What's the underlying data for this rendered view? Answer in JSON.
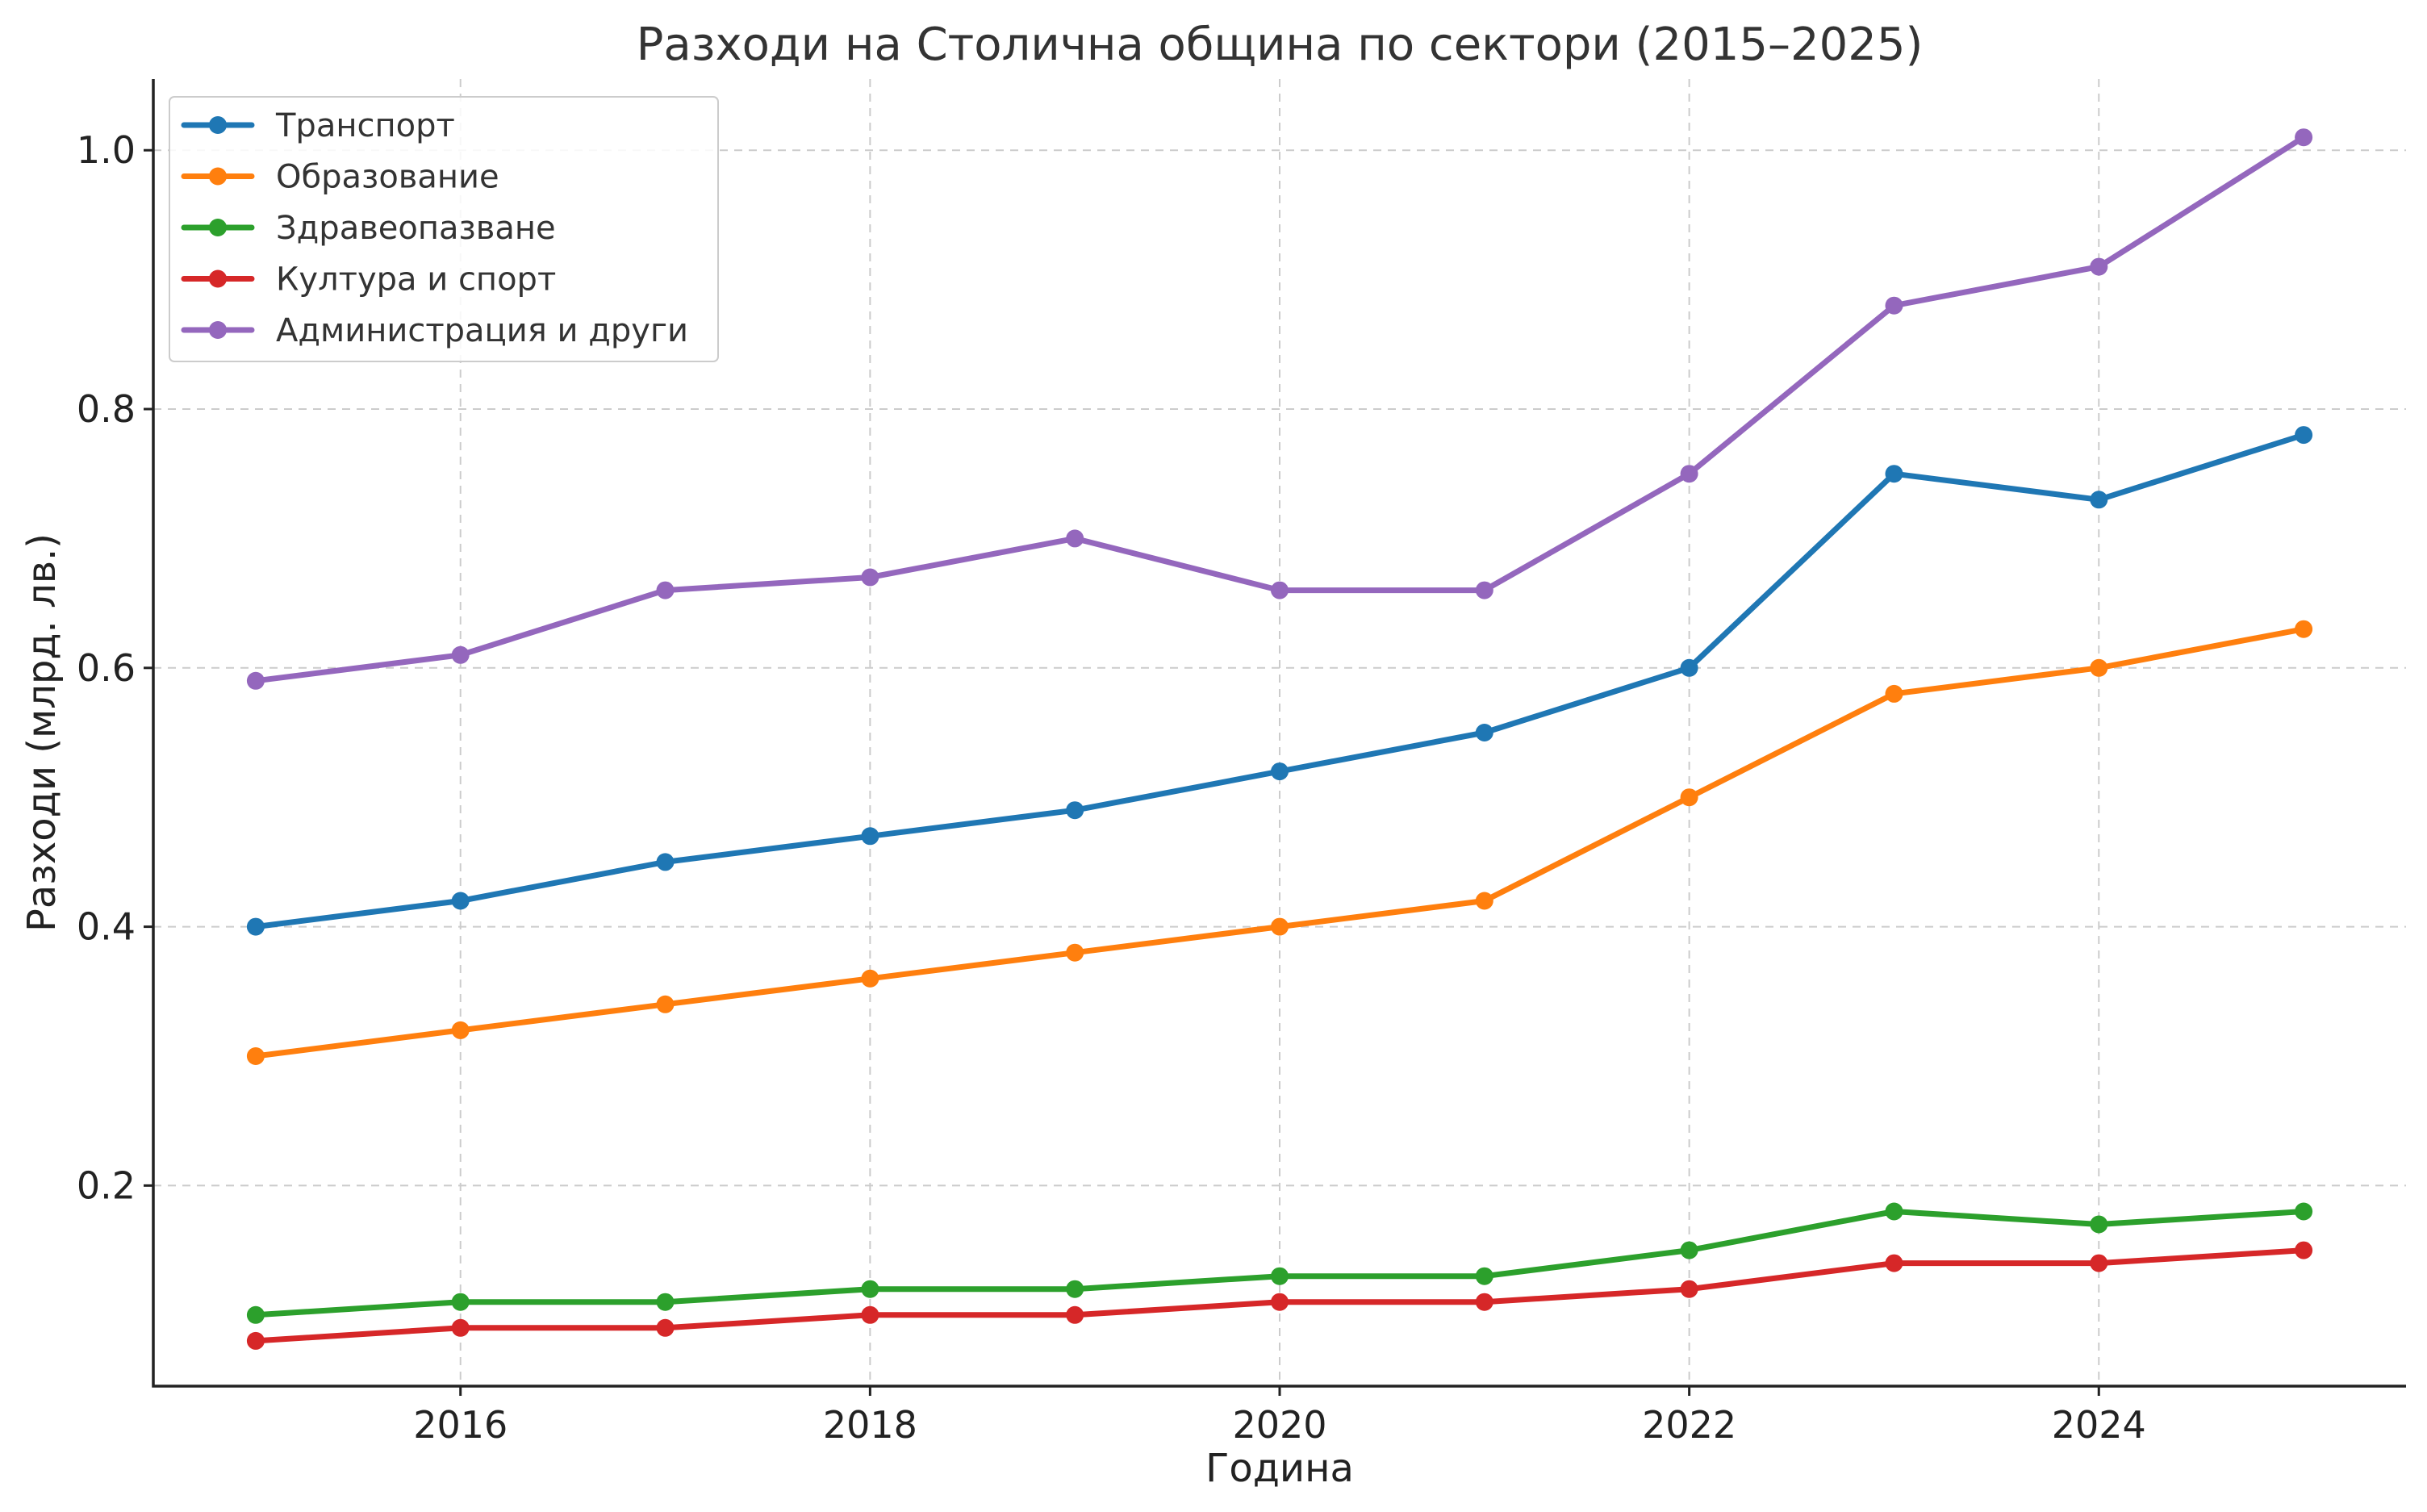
{
  "chart_data": {
    "type": "line",
    "title": "Разходи на Столична община по сектори (2015–2025)",
    "xlabel": "Година",
    "ylabel": "Разходи (млрд. лв.)",
    "x": [
      2015,
      2016,
      2017,
      2018,
      2019,
      2020,
      2021,
      2022,
      2023,
      2024,
      2025
    ],
    "xlim": [
      2014.5,
      2025.5
    ],
    "ylim": [
      0.045,
      1.055
    ],
    "xticks": [
      2016,
      2018,
      2020,
      2022,
      2024
    ],
    "yticks": [
      0.2,
      0.4,
      0.6,
      0.8,
      1.0
    ],
    "ytick_labels": [
      "0.2",
      "0.4",
      "0.6",
      "0.8",
      "1.0"
    ],
    "grid": true,
    "legend_position": "top-left",
    "series": [
      {
        "name": "Транспорт",
        "color": "#1f77b4",
        "values": [
          0.4,
          0.42,
          0.45,
          0.47,
          0.49,
          0.52,
          0.55,
          0.6,
          0.75,
          0.73,
          0.78
        ]
      },
      {
        "name": "Образование",
        "color": "#ff7f0e",
        "values": [
          0.3,
          0.32,
          0.34,
          0.36,
          0.38,
          0.4,
          0.42,
          0.5,
          0.58,
          0.6,
          0.63
        ]
      },
      {
        "name": "Здравеопазване",
        "color": "#2ca02c",
        "values": [
          0.1,
          0.11,
          0.11,
          0.12,
          0.12,
          0.13,
          0.13,
          0.15,
          0.18,
          0.17,
          0.18
        ]
      },
      {
        "name": "Култура и спорт",
        "color": "#d62728",
        "values": [
          0.08,
          0.09,
          0.09,
          0.1,
          0.1,
          0.11,
          0.11,
          0.12,
          0.14,
          0.14,
          0.15
        ]
      },
      {
        "name": "Администрация и други",
        "color": "#9467bd",
        "values": [
          0.59,
          0.61,
          0.66,
          0.67,
          0.7,
          0.66,
          0.66,
          0.75,
          0.88,
          0.91,
          1.01
        ]
      }
    ]
  }
}
